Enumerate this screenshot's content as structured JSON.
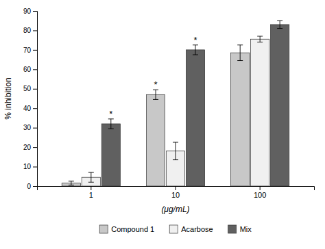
{
  "chart_data": {
    "type": "bar",
    "categories": [
      "1",
      "10",
      "100"
    ],
    "series": [
      {
        "name": "Compound 1",
        "color": "#c8c8c8",
        "values": [
          1.5,
          47.0,
          68.5
        ],
        "errors": [
          1.0,
          2.5,
          4.0
        ]
      },
      {
        "name": "Acarbose",
        "color": "#f0f0f0",
        "values": [
          4.5,
          18.0,
          75.5
        ],
        "errors": [
          2.5,
          4.5,
          1.5
        ]
      },
      {
        "name": "Mix",
        "color": "#606060",
        "values": [
          32.0,
          70.0,
          83.0
        ],
        "errors": [
          2.5,
          2.5,
          2.0
        ]
      }
    ],
    "annotations": [
      {
        "text": "*",
        "series": 0,
        "category": 1
      },
      {
        "text": "*",
        "series": 2,
        "category": 0
      },
      {
        "text": "*",
        "series": 2,
        "category": 1
      }
    ],
    "xlabel": "(μg/mL)",
    "ylabel": "% inhibition",
    "ylim": [
      0,
      90
    ],
    "yticks": [
      0,
      10,
      20,
      30,
      40,
      50,
      60,
      70,
      80,
      90
    ],
    "grid": false,
    "legend": "bottom"
  }
}
